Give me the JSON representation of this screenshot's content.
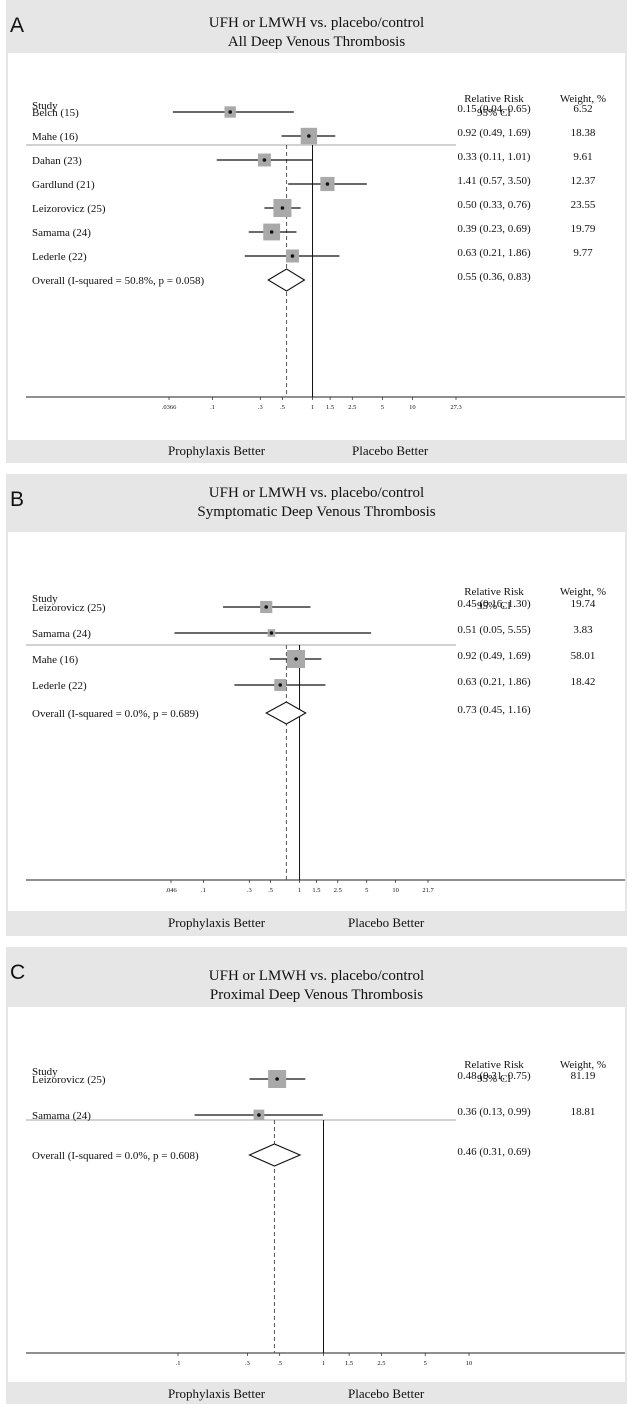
{
  "colors": {
    "background": "#e6e6e6",
    "plot": "#ffffff",
    "box": "#a9a9a9",
    "line": "#111111"
  },
  "columns": {
    "study": "Study",
    "rr_line1": "Relative Risk",
    "rr_line2": "95% CI",
    "weight": "Weight, %"
  },
  "footer": {
    "left": "Prophylaxis Better",
    "right": "Placebo Better"
  },
  "chart_data": [
    {
      "type": "forest",
      "panel": "A",
      "title": "UFH or LMWH vs. placebo/control",
      "subtitle": "All Deep Venous Thrombosis",
      "x_scale": "log",
      "xlim": [
        0.0366,
        27.3
      ],
      "ticks": [
        0.0366,
        0.1,
        0.3,
        0.5,
        1,
        1.5,
        2.5,
        5,
        10,
        27.3
      ],
      "tick_labels": [
        ".0366",
        ".1",
        ".3",
        ".5",
        "1",
        "1.5",
        "2.5",
        "5",
        "10",
        "27.3"
      ],
      "null_line": 1,
      "overall_line": 0.55,
      "studies": [
        {
          "name": "Belch (15)",
          "rr": 0.15,
          "lo": 0.04,
          "hi": 0.65,
          "ci_text": "0.15 (0.04, 0.65)",
          "weight": 6.52
        },
        {
          "name": "Mahe (16)",
          "rr": 0.92,
          "lo": 0.49,
          "hi": 1.69,
          "ci_text": "0.92 (0.49, 1.69)",
          "weight": 18.38
        },
        {
          "name": "Dahan (23)",
          "rr": 0.33,
          "lo": 0.11,
          "hi": 1.01,
          "ci_text": "0.33 (0.11, 1.01)",
          "weight": 9.61
        },
        {
          "name": "Gardlund (21)",
          "rr": 1.41,
          "lo": 0.57,
          "hi": 3.5,
          "ci_text": "1.41 (0.57, 3.50)",
          "weight": 12.37
        },
        {
          "name": "Leizorovicz (25)",
          "rr": 0.5,
          "lo": 0.33,
          "hi": 0.76,
          "ci_text": "0.50 (0.33, 0.76)",
          "weight": 23.55
        },
        {
          "name": "Samama (24)",
          "rr": 0.39,
          "lo": 0.23,
          "hi": 0.69,
          "ci_text": "0.39 (0.23, 0.69)",
          "weight": 19.79
        },
        {
          "name": "Lederle (22)",
          "rr": 0.63,
          "lo": 0.21,
          "hi": 1.86,
          "ci_text": "0.63 (0.21, 1.86)",
          "weight": 9.77
        }
      ],
      "overall": {
        "label": "Overall  (I-squared = 50.8%, p = 0.058)",
        "rr": 0.55,
        "lo": 0.36,
        "hi": 0.83,
        "ci_text": "0.55 (0.36, 0.83)"
      }
    },
    {
      "type": "forest",
      "panel": "B",
      "title": "UFH or LMWH vs. placebo/control",
      "subtitle": "Symptomatic Deep Venous Thrombosis",
      "x_scale": "log",
      "xlim": [
        0.046,
        21.7
      ],
      "ticks": [
        0.046,
        0.1,
        0.3,
        0.5,
        1,
        1.5,
        2.5,
        5,
        10,
        21.7
      ],
      "tick_labels": [
        ".046",
        ".1",
        ".3",
        ".5",
        "1",
        "1.5",
        "2.5",
        "5",
        "10",
        "21.7"
      ],
      "null_line": 1,
      "overall_line": 0.73,
      "studies": [
        {
          "name": "Leizorovicz (25)",
          "rr": 0.45,
          "lo": 0.16,
          "hi": 1.3,
          "ci_text": "0.45 (0.16, 1.30)",
          "weight": 19.74
        },
        {
          "name": "Samama (24)",
          "rr": 0.51,
          "lo": 0.05,
          "hi": 5.55,
          "ci_text": "0.51 (0.05, 5.55)",
          "weight": 3.83
        },
        {
          "name": "Mahe (16)",
          "rr": 0.92,
          "lo": 0.49,
          "hi": 1.69,
          "ci_text": "0.92 (0.49, 1.69)",
          "weight": 58.01
        },
        {
          "name": "Lederle (22)",
          "rr": 0.63,
          "lo": 0.21,
          "hi": 1.86,
          "ci_text": "0.63 (0.21, 1.86)",
          "weight": 18.42
        }
      ],
      "overall": {
        "label": "Overall  (I-squared = 0.0%, p = 0.689)",
        "rr": 0.73,
        "lo": 0.45,
        "hi": 1.16,
        "ci_text": "0.73 (0.45, 1.16)"
      }
    },
    {
      "type": "forest",
      "panel": "C",
      "title": "UFH or LMWH vs. placebo/control",
      "subtitle": "Proximal Deep Venous Thrombosis",
      "x_scale": "log",
      "xlim": [
        0.1,
        10
      ],
      "ticks": [
        0.1,
        0.3,
        0.5,
        1,
        1.5,
        2.5,
        5,
        10
      ],
      "tick_labels": [
        ".1",
        ".3",
        ".5",
        "1",
        "1.5",
        "2.5",
        "5",
        "10"
      ],
      "null_line": 1,
      "overall_line": 0.46,
      "studies": [
        {
          "name": "Leizorovicz (25)",
          "rr": 0.48,
          "lo": 0.31,
          "hi": 0.75,
          "ci_text": "0.48 (0.31, 0.75)",
          "weight": 81.19
        },
        {
          "name": "Samama (24)",
          "rr": 0.36,
          "lo": 0.13,
          "hi": 0.99,
          "ci_text": "0.36 (0.13, 0.99)",
          "weight": 18.81
        }
      ],
      "overall": {
        "label": "Overall  (I-squared = 0.0%, p = 0.608)",
        "rr": 0.46,
        "lo": 0.31,
        "hi": 0.69,
        "ci_text": "0.46 (0.31, 0.69)"
      }
    }
  ]
}
